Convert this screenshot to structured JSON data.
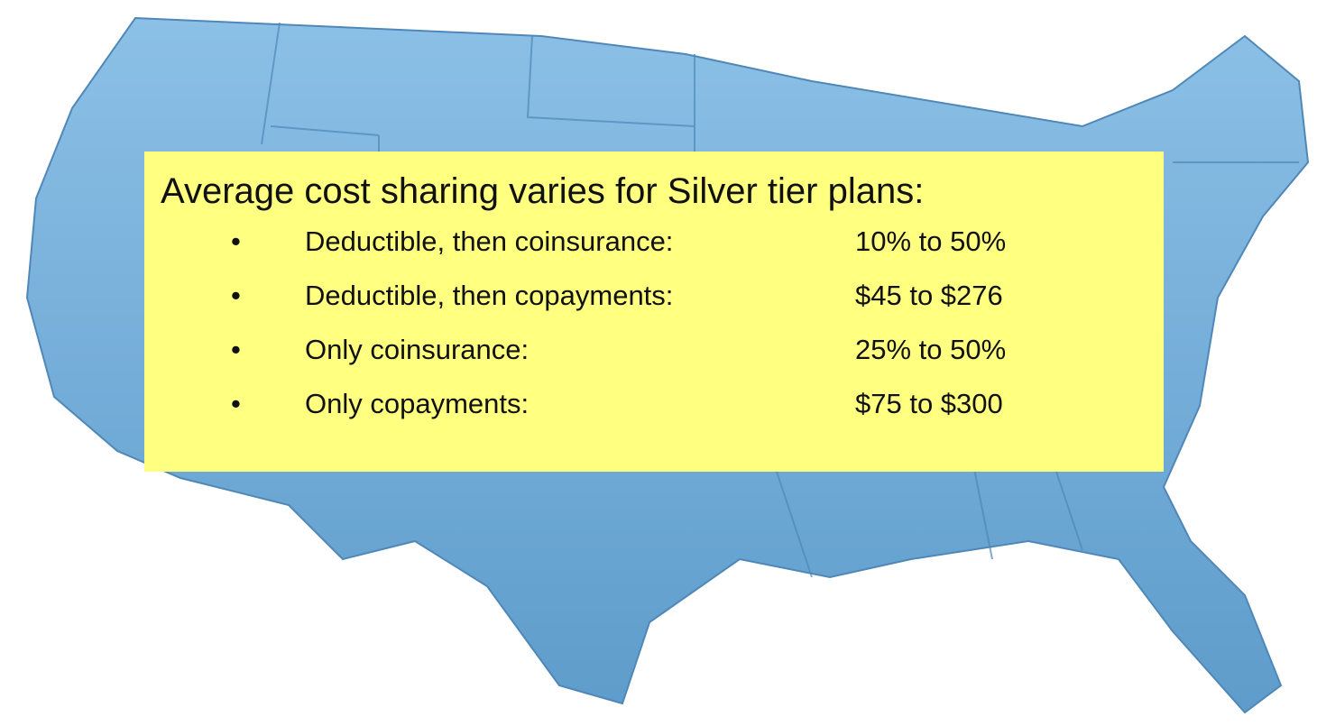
{
  "slide": {
    "title": "Average cost sharing varies for Silver tier plans:",
    "items": [
      {
        "label": "Deductible, then coinsurance:",
        "value": "10% to 50%"
      },
      {
        "label": "Deductible, then copayments:",
        "value": "$45 to $276"
      },
      {
        "label": "Only coinsurance:",
        "value": "25% to 50%"
      },
      {
        "label": "Only copayments:",
        "value": "$75 to $300"
      }
    ]
  }
}
